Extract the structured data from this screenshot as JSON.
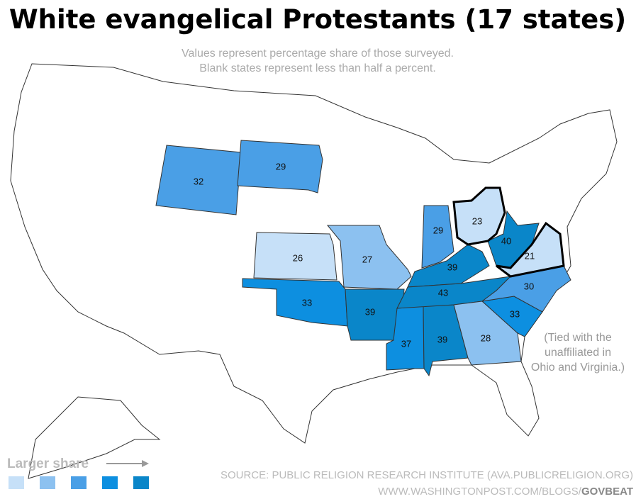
{
  "title": "White evangelical Protestants (17 states)",
  "subtitle": [
    "Values represent percentage share of those surveyed.",
    "Blank states represent less than half a percent."
  ],
  "map": {
    "values": [
      32,
      29,
      26,
      27,
      33,
      29,
      39,
      39,
      37,
      39,
      43,
      28,
      33,
      30,
      40,
      23,
      21
    ],
    "colors": [
      "#4a9fe6",
      "#4a9fe6",
      "#c6e0f8",
      "#8cc1f0",
      "#0d8fe0",
      "#4a9fe6",
      "#0a86c9",
      "#0a86c9",
      "#0d8fe0",
      "#0a86c9",
      "#0a86c9",
      "#8cc1f0",
      "#0d8fe0",
      "#4a9fe6",
      "#0a86c9",
      "#c6e0f8",
      "#c6e0f8"
    ],
    "outlined": [
      false,
      false,
      false,
      false,
      false,
      false,
      false,
      false,
      false,
      false,
      false,
      false,
      false,
      false,
      false,
      true,
      true
    ]
  },
  "note": [
    "(Tied with the",
    "unaffiliated in",
    "Ohio and Virginia.)"
  ],
  "legend": {
    "label": "Larger share",
    "colors": [
      "#c6e0f8",
      "#8cc1f0",
      "#4a9fe6",
      "#0d8fe0",
      "#0a86c9"
    ]
  },
  "source": "SOURCE: PUBLIC RELIGION RESEARCH INSTITUTE (AVA.PUBLICRELIGION.ORG)",
  "credit": {
    "url": "WWW.WASHINGTONPOST.COM/BLOGS/",
    "brand": "GOVBEAT"
  }
}
